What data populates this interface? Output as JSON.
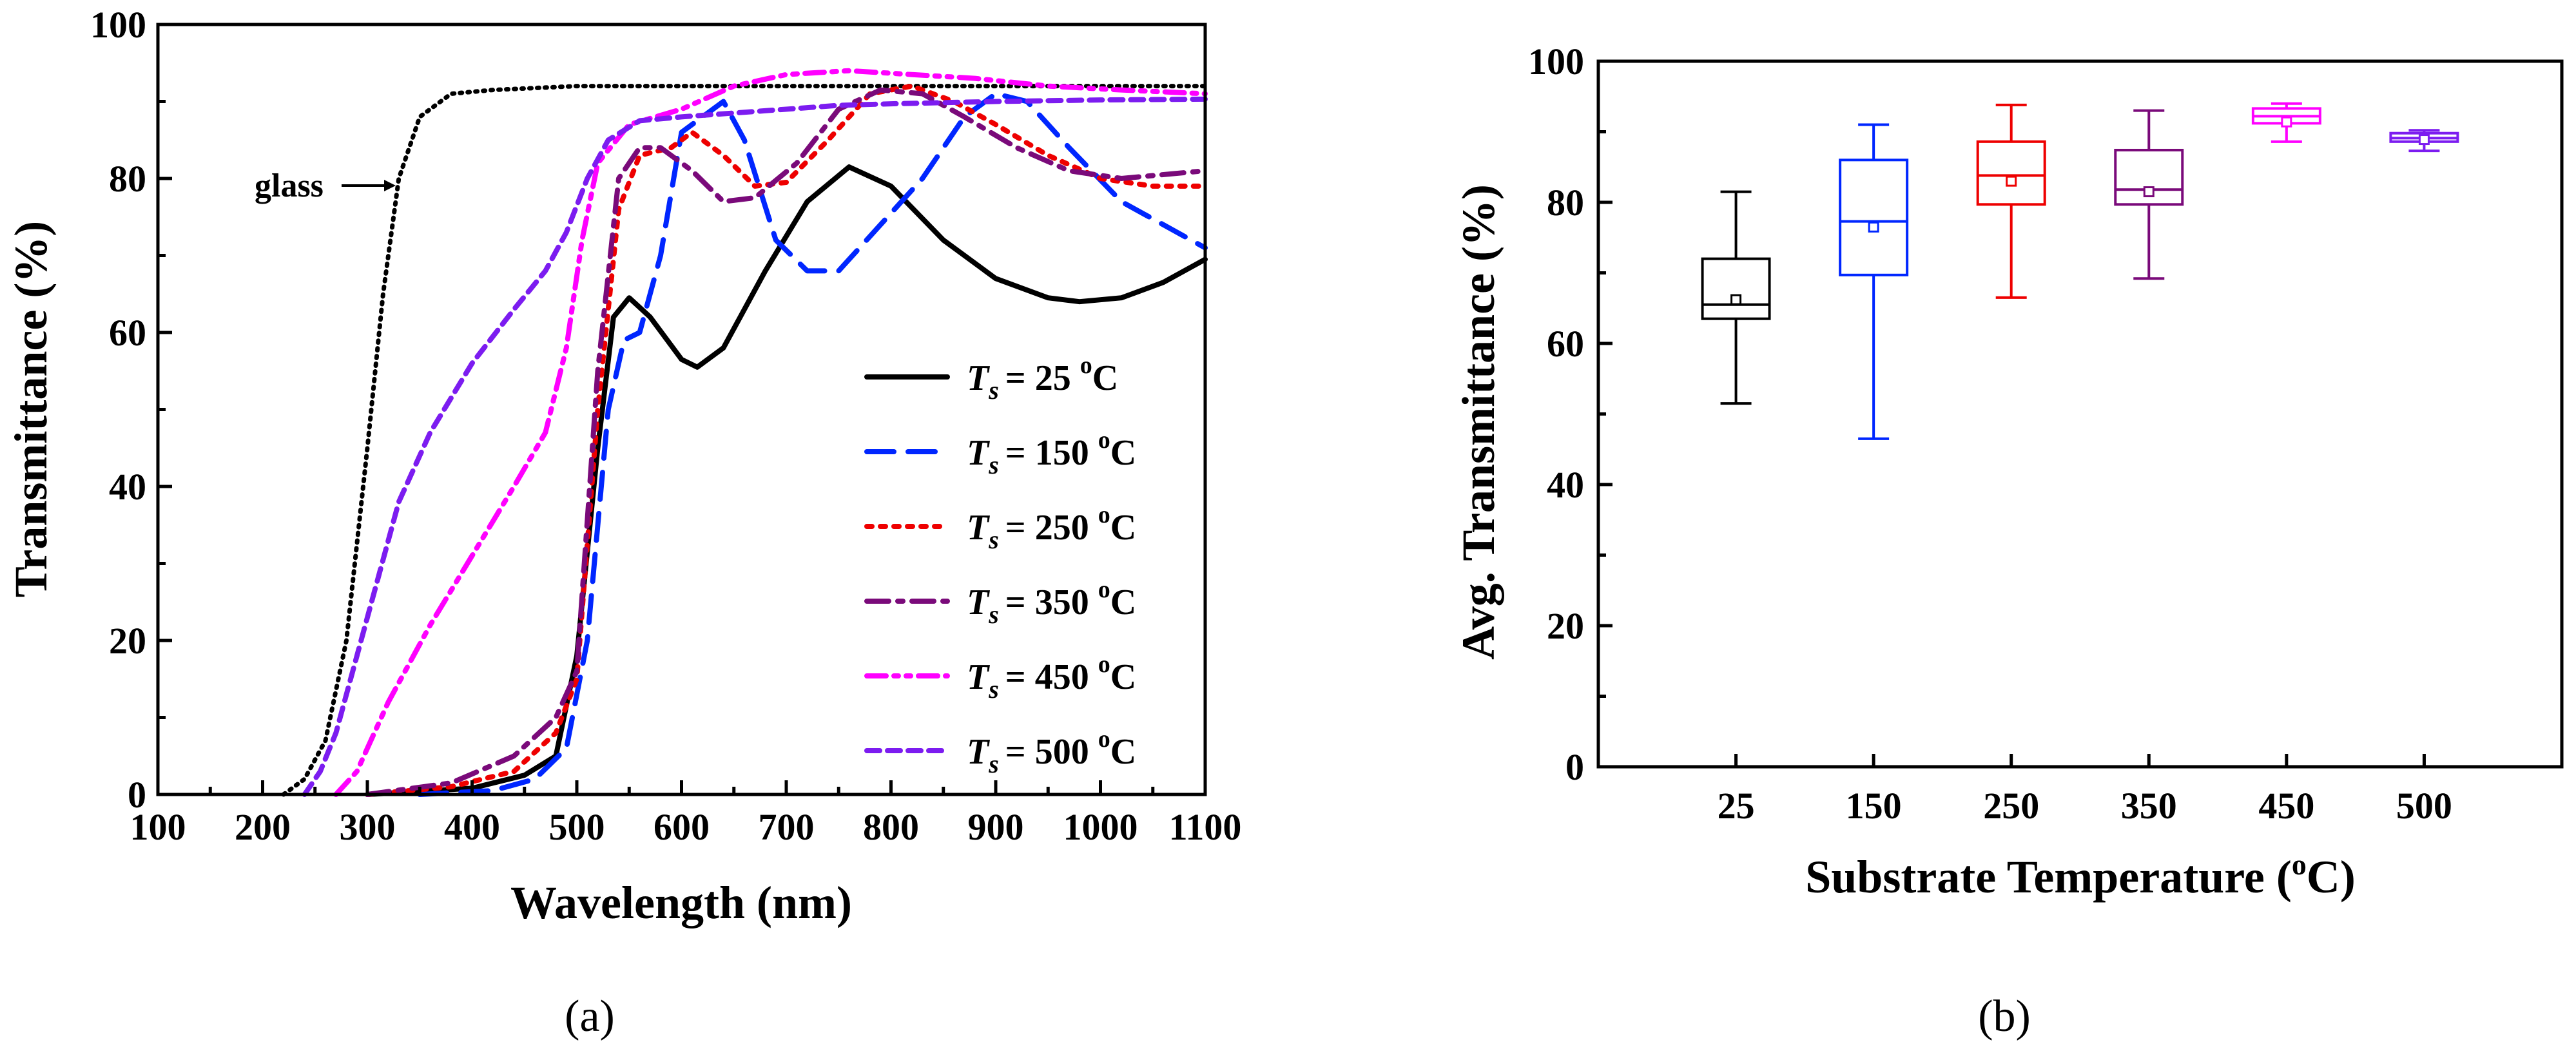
{
  "chart_data": [
    {
      "type": "line",
      "panel_label": "(a)",
      "xlabel": "Wavelength (nm)",
      "ylabel": "Transmittance (%)",
      "xlim": [
        100,
        1100
      ],
      "ylim": [
        0,
        100
      ],
      "x_ticks": [
        "100",
        "200",
        "300",
        "400",
        "500",
        "600",
        "700",
        "800",
        "900",
        "1000",
        "1100"
      ],
      "y_ticks": [
        "0",
        "20",
        "40",
        "60",
        "80",
        "100"
      ],
      "annotation": "glass",
      "legend_prefix": "T",
      "legend_subscript": "s",
      "legend_unit_sup": "o",
      "legend_unit": "C",
      "series": [
        {
          "name": "glass",
          "label": "",
          "color": "#000000",
          "dash": "dot",
          "points": [
            [
              220,
              0
            ],
            [
              240,
              2
            ],
            [
              260,
              7
            ],
            [
              280,
              20
            ],
            [
              300,
              45
            ],
            [
              315,
              65
            ],
            [
              330,
              80
            ],
            [
              350,
              88
            ],
            [
              380,
              91
            ],
            [
              420,
              91.5
            ],
            [
              500,
              92
            ],
            [
              700,
              92
            ],
            [
              900,
              92
            ],
            [
              1100,
              92
            ]
          ]
        },
        {
          "name": "T_s = 25 °C",
          "label": "= 25 ",
          "color": "#000000",
          "dash": "solid",
          "points": [
            [
              300,
              0
            ],
            [
              400,
              0.8
            ],
            [
              450,
              2.5
            ],
            [
              480,
              5
            ],
            [
              500,
              18
            ],
            [
              520,
              45
            ],
            [
              535,
              62
            ],
            [
              550,
              64.5
            ],
            [
              570,
              62
            ],
            [
              600,
              56.5
            ],
            [
              615,
              55.5
            ],
            [
              640,
              58
            ],
            [
              680,
              68
            ],
            [
              720,
              77
            ],
            [
              760,
              81.5
            ],
            [
              800,
              79
            ],
            [
              850,
              72
            ],
            [
              900,
              67
            ],
            [
              950,
              64.5
            ],
            [
              980,
              64
            ],
            [
              1020,
              64.5
            ],
            [
              1060,
              66.5
            ],
            [
              1100,
              69.5
            ]
          ]
        },
        {
          "name": "T_s = 150 °C",
          "label": "= 150 ",
          "color": "#0026ff",
          "dash": "dash",
          "points": [
            [
              350,
              0
            ],
            [
              420,
              0.5
            ],
            [
              460,
              2
            ],
            [
              490,
              6
            ],
            [
              510,
              20
            ],
            [
              530,
              50
            ],
            [
              545,
              59
            ],
            [
              560,
              60
            ],
            [
              580,
              70
            ],
            [
              600,
              86
            ],
            [
              620,
              88
            ],
            [
              640,
              90
            ],
            [
              660,
              85
            ],
            [
              690,
              72
            ],
            [
              720,
              68
            ],
            [
              750,
              68
            ],
            [
              790,
              74
            ],
            [
              830,
              80
            ],
            [
              870,
              88
            ],
            [
              900,
              91
            ],
            [
              930,
              90
            ],
            [
              970,
              84
            ],
            [
              1020,
              77
            ],
            [
              1100,
              71
            ]
          ]
        },
        {
          "name": "T_s = 250 °C",
          "label": "= 250 ",
          "color": "#ee0000",
          "dash": "dotted-short",
          "points": [
            [
              300,
              0
            ],
            [
              380,
              1
            ],
            [
              440,
              3
            ],
            [
              480,
              8
            ],
            [
              500,
              15
            ],
            [
              520,
              50
            ],
            [
              540,
              76
            ],
            [
              560,
              83
            ],
            [
              590,
              84
            ],
            [
              610,
              86
            ],
            [
              640,
              83
            ],
            [
              670,
              79
            ],
            [
              700,
              79.5
            ],
            [
              740,
              85
            ],
            [
              780,
              91
            ],
            [
              820,
              92
            ],
            [
              860,
              90
            ],
            [
              900,
              87
            ],
            [
              950,
              83
            ],
            [
              1000,
              80
            ],
            [
              1050,
              79
            ],
            [
              1100,
              79
            ]
          ]
        },
        {
          "name": "T_s = 350 °C",
          "label": "= 350 ",
          "color": "#7a0a7a",
          "dash": "dashdot",
          "points": [
            [
              300,
              0
            ],
            [
              380,
              1.5
            ],
            [
              440,
              5
            ],
            [
              480,
              10
            ],
            [
              500,
              16
            ],
            [
              520,
              55
            ],
            [
              540,
              80
            ],
            [
              560,
              84
            ],
            [
              580,
              84
            ],
            [
              610,
              81
            ],
            [
              640,
              77
            ],
            [
              670,
              77.5
            ],
            [
              710,
              82
            ],
            [
              750,
              89
            ],
            [
              790,
              91.5
            ],
            [
              830,
              91
            ],
            [
              870,
              88
            ],
            [
              920,
              84
            ],
            [
              970,
              81
            ],
            [
              1020,
              80
            ],
            [
              1100,
              81
            ]
          ]
        },
        {
          "name": "T_s = 450 °C",
          "label": "= 450 ",
          "color": "#ff00ff",
          "dash": "dashdotdot",
          "points": [
            [
              270,
              0
            ],
            [
              290,
              3
            ],
            [
              320,
              12
            ],
            [
              360,
              22
            ],
            [
              400,
              31
            ],
            [
              440,
              40
            ],
            [
              470,
              47
            ],
            [
              490,
              58
            ],
            [
              505,
              72
            ],
            [
              520,
              82
            ],
            [
              550,
              87
            ],
            [
              600,
              89
            ],
            [
              650,
              92
            ],
            [
              700,
              93.5
            ],
            [
              760,
              94
            ],
            [
              820,
              93.5
            ],
            [
              880,
              93
            ],
            [
              950,
              92
            ],
            [
              1020,
              91.5
            ],
            [
              1100,
              91
            ]
          ]
        },
        {
          "name": "T_s = 500 °C",
          "label": "= 500 ",
          "color": "#7c1cf0",
          "dash": "shortdash",
          "points": [
            [
              240,
              0
            ],
            [
              255,
              3
            ],
            [
              270,
              8
            ],
            [
              290,
              18
            ],
            [
              310,
              28
            ],
            [
              330,
              38
            ],
            [
              360,
              47
            ],
            [
              400,
              56
            ],
            [
              440,
              63
            ],
            [
              470,
              68
            ],
            [
              490,
              73
            ],
            [
              510,
              80
            ],
            [
              530,
              85
            ],
            [
              560,
              87.5
            ],
            [
              600,
              88
            ],
            [
              650,
              88.5
            ],
            [
              700,
              89
            ],
            [
              750,
              89.5
            ],
            [
              800,
              89.7
            ],
            [
              900,
              90
            ],
            [
              1000,
              90.2
            ],
            [
              1100,
              90.3
            ]
          ]
        }
      ]
    },
    {
      "type": "box",
      "panel_label": "(b)",
      "xlabel_main": "Substrate Temperature (",
      "xlabel_sup": "o",
      "xlabel_tail": "C)",
      "ylabel": "Avg. Transmittance (%)",
      "ylim": [
        0,
        100
      ],
      "y_ticks": [
        "0",
        "20",
        "40",
        "60",
        "80",
        "100"
      ],
      "categories": [
        "25",
        "150",
        "250",
        "350",
        "450",
        "500"
      ],
      "boxes": [
        {
          "category": "25",
          "color": "#000000",
          "min": 51.5,
          "q1": 63.5,
          "median": 65.5,
          "q3": 72.0,
          "max": 81.5,
          "mean": 66.2
        },
        {
          "category": "150",
          "color": "#0026ff",
          "min": 46.5,
          "q1": 69.7,
          "median": 77.3,
          "q3": 86.0,
          "max": 91.0,
          "mean": 76.5
        },
        {
          "category": "250",
          "color": "#ee0000",
          "min": 66.5,
          "q1": 79.7,
          "median": 83.8,
          "q3": 88.6,
          "max": 93.8,
          "mean": 83.0
        },
        {
          "category": "350",
          "color": "#7a0a7a",
          "min": 69.2,
          "q1": 79.7,
          "median": 81.8,
          "q3": 87.4,
          "max": 93.0,
          "mean": 81.5
        },
        {
          "category": "450",
          "color": "#ff00ff",
          "min": 88.6,
          "q1": 91.2,
          "median": 92.2,
          "q3": 93.3,
          "max": 94.0,
          "mean": 91.4
        },
        {
          "category": "500",
          "color": "#7c1cf0",
          "min": 87.3,
          "q1": 88.6,
          "median": 89.1,
          "q3": 89.8,
          "max": 90.2,
          "mean": 88.9
        }
      ]
    }
  ]
}
